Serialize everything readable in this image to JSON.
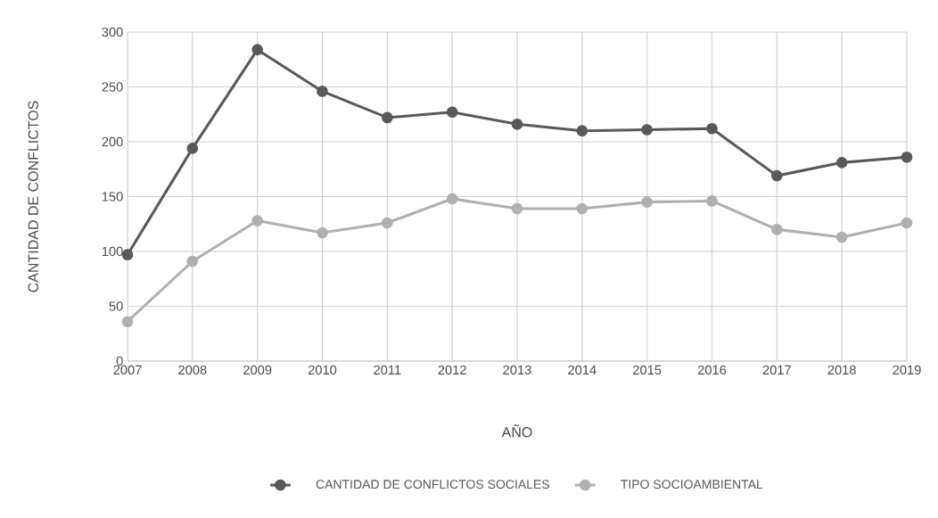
{
  "chart_data": {
    "type": "line",
    "xlabel": "AÑO",
    "ylabel": "CANTIDAD DE CONFLICTOS",
    "categories": [
      "2007",
      "2008",
      "2009",
      "2010",
      "2011",
      "2012",
      "2013",
      "2014",
      "2015",
      "2016",
      "2017",
      "2018",
      "2019"
    ],
    "series": [
      {
        "name": "CANTIDAD DE CONFLICTOS SOCIALES",
        "color": "#595959",
        "values": [
          97,
          194,
          284,
          246,
          222,
          227,
          216,
          210,
          211,
          212,
          169,
          181,
          186
        ]
      },
      {
        "name": "TIPO SOCIOAMBIENTAL",
        "color": "#b0b0b0",
        "values": [
          36,
          91,
          128,
          117,
          126,
          148,
          139,
          139,
          145,
          146,
          120,
          113,
          126
        ]
      }
    ],
    "ylim": [
      0,
      300
    ],
    "yticks": [
      0,
      50,
      100,
      150,
      200,
      250,
      300
    ],
    "grid": true,
    "legend": "bottom",
    "marker": "circle",
    "line_style": "solid"
  }
}
